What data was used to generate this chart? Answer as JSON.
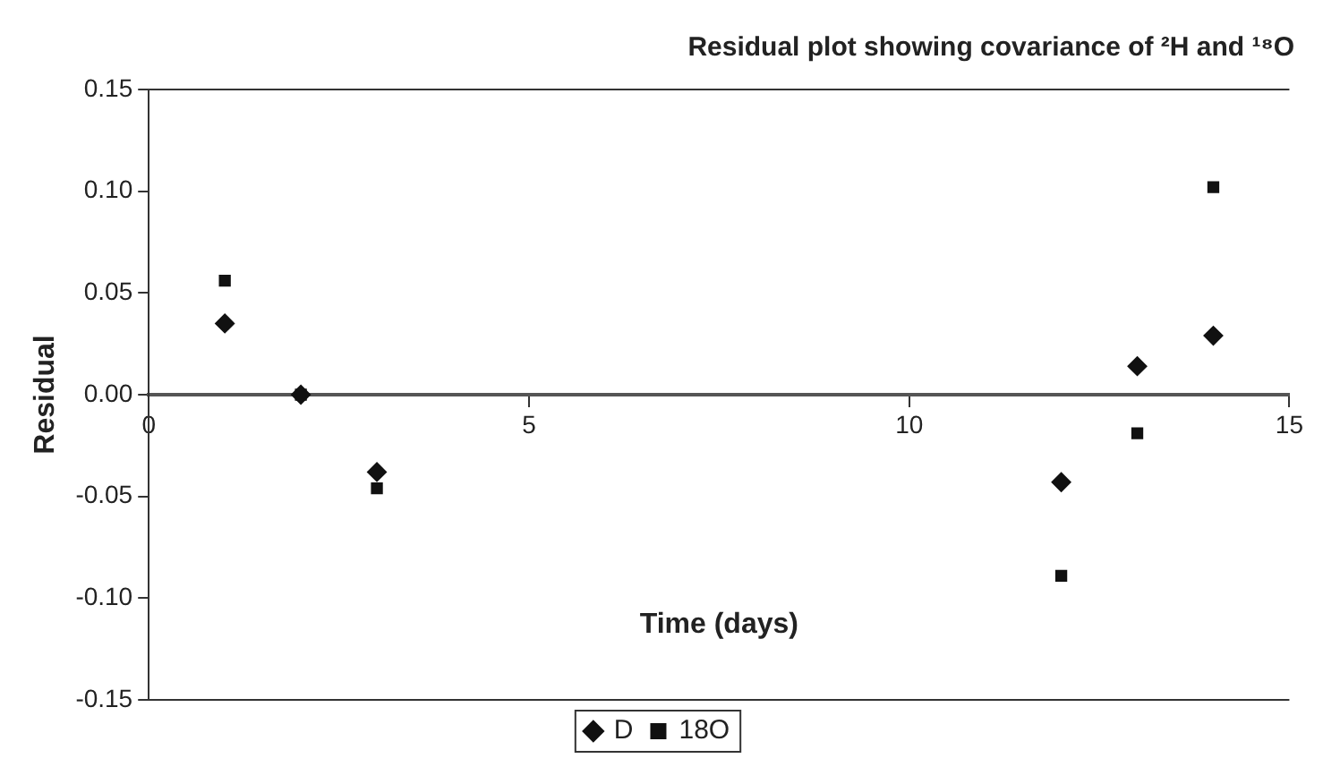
{
  "chart_data": {
    "type": "scatter",
    "title": "Residual plot showing covariance of ²H and ¹⁸O",
    "xlabel": "Time (days)",
    "ylabel": "Residual",
    "x": [
      1,
      2,
      3,
      12,
      13,
      14
    ],
    "series": [
      {
        "name": "D",
        "color": "#111111",
        "marker": "diamond",
        "values": [
          0.035,
          0.0,
          -0.038,
          -0.043,
          0.014,
          0.029
        ]
      },
      {
        "name": "18O",
        "color": "#111111",
        "marker": "square",
        "values": [
          0.056,
          0.0,
          -0.046,
          -0.089,
          -0.019,
          0.102
        ]
      }
    ],
    "xlim": [
      0,
      15
    ],
    "xticks": [
      0,
      5,
      10,
      15
    ],
    "ylim": [
      -0.15,
      0.15
    ],
    "yticks": [
      {
        "value": -0.15,
        "label": "-0.15"
      },
      {
        "value": -0.1,
        "label": "-0.10"
      },
      {
        "value": -0.05,
        "label": "-0.05"
      },
      {
        "value": 0,
        "label": "0.00"
      },
      {
        "value": 0.05,
        "label": "0.05"
      },
      {
        "value": 0.1,
        "label": "0.10"
      },
      {
        "value": 0.15,
        "label": "0.15"
      }
    ],
    "grid": false,
    "legend": "bottom"
  }
}
